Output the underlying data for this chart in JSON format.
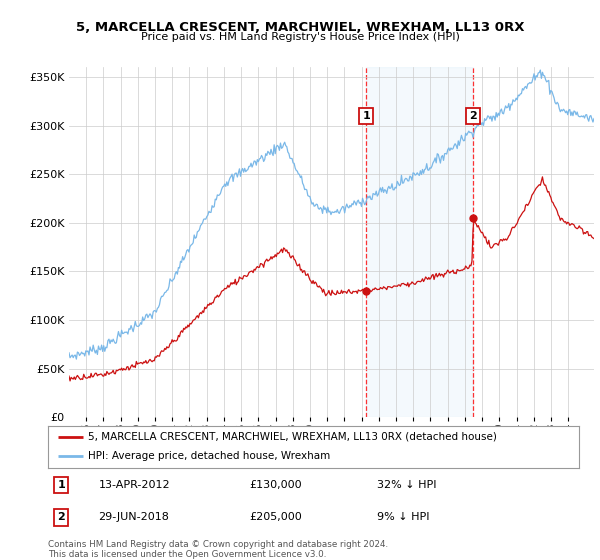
{
  "title": "5, MARCELLA CRESCENT, MARCHWIEL, WREXHAM, LL13 0RX",
  "subtitle": "Price paid vs. HM Land Registry's House Price Index (HPI)",
  "hpi_color": "#7ab8e8",
  "price_color": "#cc1111",
  "legend_entries": [
    "5, MARCELLA CRESCENT, MARCHWIEL, WREXHAM, LL13 0RX (detached house)",
    "HPI: Average price, detached house, Wrexham"
  ],
  "ann1_date": "13-APR-2012",
  "ann1_price": "£130,000",
  "ann1_hpi": "32% ↓ HPI",
  "ann1_x": 2012.28,
  "ann1_y": 130000,
  "ann2_date": "29-JUN-2018",
  "ann2_price": "£205,000",
  "ann2_hpi": "9% ↓ HPI",
  "ann2_x": 2018.49,
  "ann2_y": 205000,
  "footer": "Contains HM Land Registry data © Crown copyright and database right 2024.\nThis data is licensed under the Open Government Licence v3.0.",
  "ylim": [
    0,
    360000
  ],
  "yticks": [
    0,
    50000,
    100000,
    150000,
    200000,
    250000,
    300000,
    350000
  ],
  "ytick_labels": [
    "£0",
    "£50K",
    "£100K",
    "£150K",
    "£200K",
    "£250K",
    "£300K",
    "£350K"
  ],
  "xmin": 1995.0,
  "xmax": 2025.5,
  "background_color": "#ffffff",
  "grid_color": "#cccccc"
}
